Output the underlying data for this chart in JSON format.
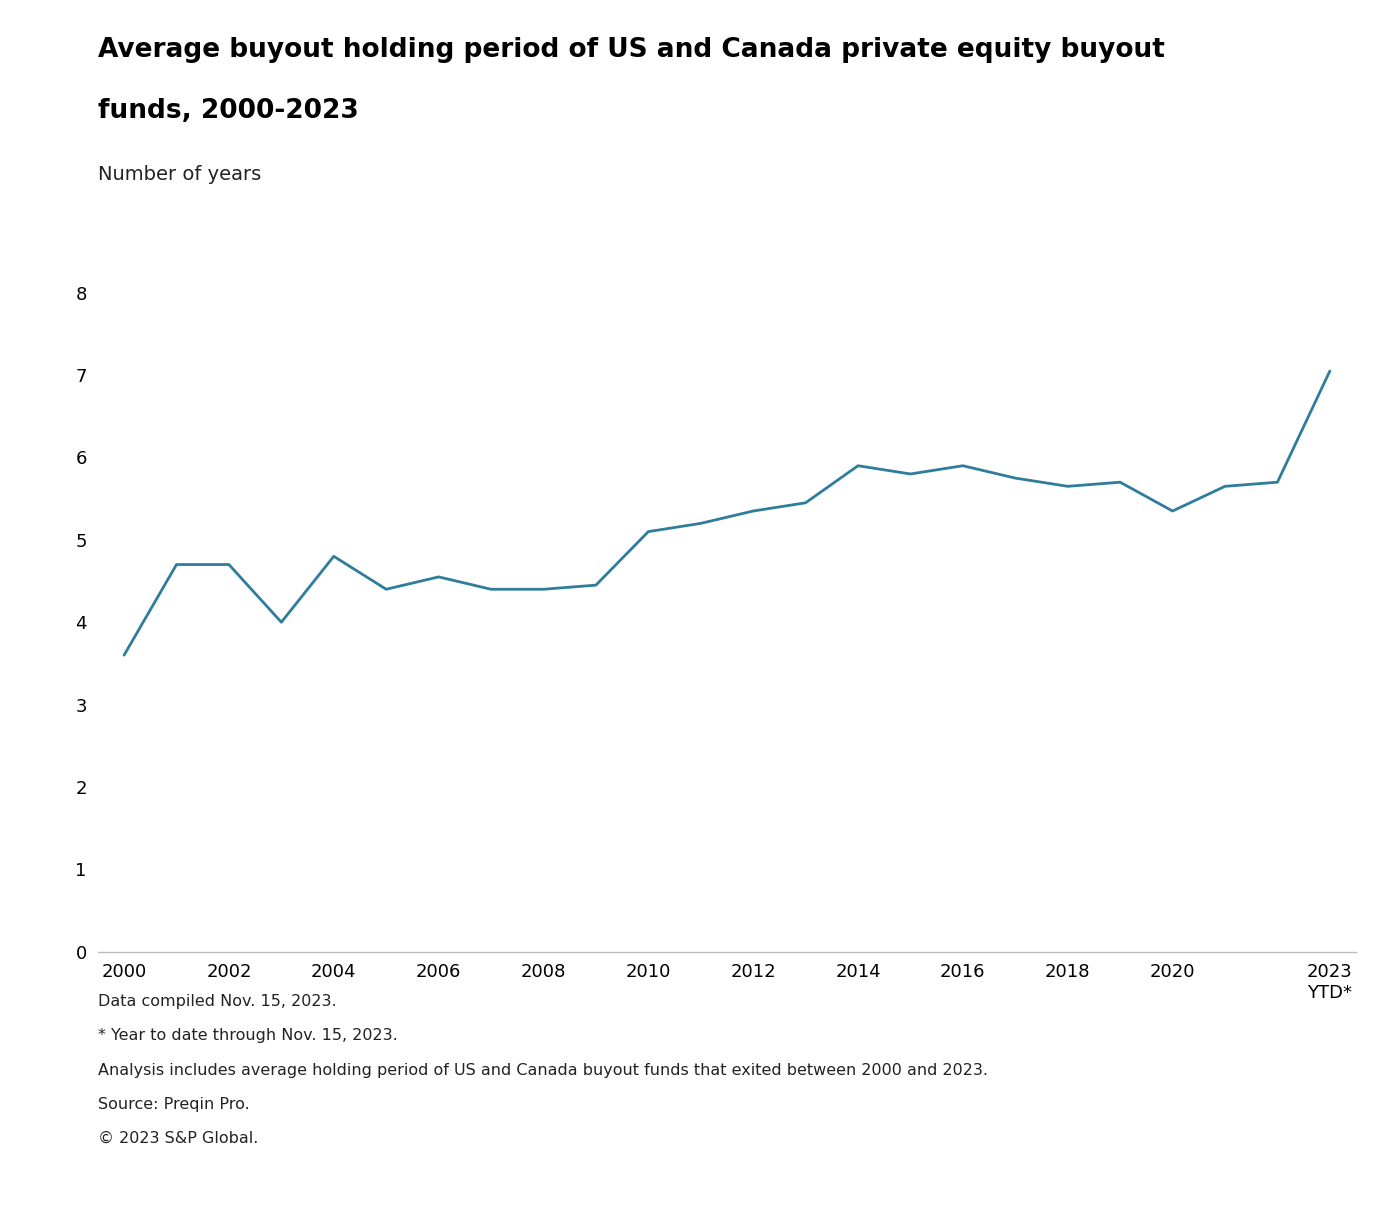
{
  "title_line1": "Average buyout holding period of US and Canada private equity buyout",
  "title_line2": "funds, 2000-2023",
  "subtitle": "Number of years",
  "years": [
    2000,
    2001,
    2002,
    2003,
    2004,
    2005,
    2006,
    2007,
    2008,
    2009,
    2010,
    2011,
    2012,
    2013,
    2014,
    2015,
    2016,
    2017,
    2018,
    2019,
    2020,
    2021,
    2022,
    2023
  ],
  "values": [
    3.6,
    4.7,
    4.7,
    4.0,
    4.8,
    4.4,
    4.55,
    4.4,
    4.4,
    4.45,
    5.1,
    5.2,
    5.35,
    5.45,
    5.9,
    5.8,
    5.9,
    5.75,
    5.65,
    5.7,
    5.35,
    5.65,
    5.7,
    7.05
  ],
  "line_color": "#2e7d9b",
  "line_width": 2.0,
  "ylim": [
    0,
    8
  ],
  "yticks": [
    0,
    1,
    2,
    3,
    4,
    5,
    6,
    7,
    8
  ],
  "xlim_start": 1999.5,
  "xlim_end": 2023.5,
  "xtick_labels": [
    "2000",
    "2002",
    "2004",
    "2006",
    "2008",
    "2010",
    "2012",
    "2014",
    "2016",
    "2018",
    "2020",
    "2023\nYTD*"
  ],
  "xtick_positions": [
    2000,
    2002,
    2004,
    2006,
    2008,
    2010,
    2012,
    2014,
    2016,
    2018,
    2020,
    2023
  ],
  "background_color": "#ffffff",
  "footnotes": [
    "Data compiled Nov. 15, 2023.",
    "* Year to date through Nov. 15, 2023.",
    "Analysis includes average holding period of US and Canada buyout funds that exited between 2000 and 2023.",
    "Source: Preqin Pro.",
    "© 2023 S&P Global."
  ],
  "title_fontsize": 19,
  "subtitle_fontsize": 14,
  "tick_fontsize": 13,
  "footnote_fontsize": 11.5
}
